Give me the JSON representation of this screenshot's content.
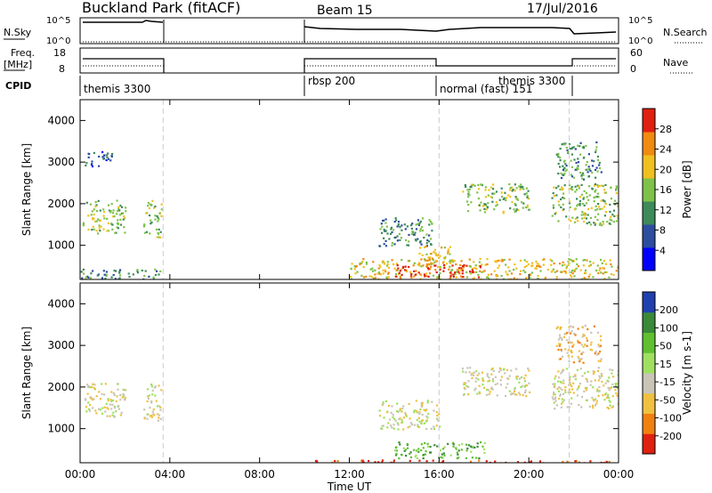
{
  "header": {
    "site": "Buckland Park (fitACF)",
    "beam": "Beam 15",
    "date": "17/Jul/2016"
  },
  "panels": {
    "nsky_label": "N.Sky",
    "nsky_ticks": [
      "10^5",
      "10^0"
    ],
    "nsearch_label": "N.Search",
    "freq_label": "Freq.",
    "freq_unit": "[MHz]",
    "freq_ticks": [
      "18",
      "8"
    ],
    "nave_label": "Nave",
    "nave_ticks": [
      "60",
      "0"
    ],
    "cpid_label": "CPID",
    "cpid_segments": [
      "themis 3300",
      "rbsp 200",
      "normal (fast) 151",
      "themis 3300"
    ]
  },
  "chart_data": [
    {
      "type": "heatmap",
      "title": "",
      "xlabel": "",
      "ylabel": "Slant Range [km]",
      "x_ticks": [
        "00:00",
        "04:00",
        "08:00",
        "12:00",
        "16:00",
        "20:00",
        "00:00"
      ],
      "xlim": [
        0,
        24
      ],
      "y_ticks": [
        "1000",
        "2000",
        "3000",
        "4000"
      ],
      "ylim": [
        180,
        4500
      ],
      "colorbar_label": "Power [dB]",
      "colorbar_ticks": [
        "4",
        "8",
        "12",
        "16",
        "20",
        "24",
        "28"
      ],
      "colorbar_range": [
        0,
        30
      ],
      "colors": [
        "#0000ff",
        "#2d4d9e",
        "#3e8a5a",
        "#7fc24a",
        "#f0c020",
        "#f08a10",
        "#e02010"
      ],
      "regions": [
        {
          "t0": 0.1,
          "t1": 2.0,
          "r0": 1300,
          "r1": 2100,
          "level": 3
        },
        {
          "t0": 0.2,
          "t1": 1.4,
          "r0": 2900,
          "r1": 3300,
          "level": 1
        },
        {
          "t0": 0.0,
          "t1": 3.6,
          "r0": 200,
          "r1": 450,
          "level": 2
        },
        {
          "t0": 2.8,
          "t1": 3.6,
          "r0": 1200,
          "r1": 2100,
          "level": 3
        },
        {
          "t0": 13.3,
          "t1": 15.8,
          "r0": 1000,
          "r1": 1700,
          "level": 2
        },
        {
          "t0": 15.0,
          "t1": 16.5,
          "r0": 500,
          "r1": 1000,
          "level": 4
        },
        {
          "t0": 12.0,
          "t1": 24.0,
          "r0": 200,
          "r1": 700,
          "level": 4
        },
        {
          "t0": 14.0,
          "t1": 18.0,
          "r0": 250,
          "r1": 550,
          "level": 6
        },
        {
          "t0": 17.0,
          "t1": 20.0,
          "r0": 1800,
          "r1": 2500,
          "level": 3
        },
        {
          "t0": 21.0,
          "t1": 24.0,
          "r0": 1500,
          "r1": 2500,
          "level": 3
        },
        {
          "t0": 21.2,
          "t1": 23.2,
          "r0": 2600,
          "r1": 3500,
          "level": 2
        }
      ]
    },
    {
      "type": "heatmap",
      "title": "",
      "xlabel": "Time UT",
      "ylabel": "Slant Range [km]",
      "x_ticks": [
        "00:00",
        "04:00",
        "08:00",
        "12:00",
        "16:00",
        "20:00",
        "00:00"
      ],
      "xlim": [
        0,
        24
      ],
      "y_ticks": [
        "1000",
        "2000",
        "3000",
        "4000"
      ],
      "ylim": [
        180,
        4500
      ],
      "colorbar_label": "Velocity [m s-1]",
      "colorbar_ticks": [
        "200",
        "100",
        "50",
        "15",
        "-15",
        "-50",
        "-100",
        "-200"
      ],
      "colorbar_range": [
        -300,
        300
      ],
      "colors": [
        "#2040b0",
        "#3a8a3a",
        "#60c030",
        "#a0e060",
        "#c8c4b8",
        "#f0c040",
        "#f08010",
        "#e02010"
      ],
      "regions": [
        {
          "t0": 0.1,
          "t1": 2.0,
          "r0": 1300,
          "r1": 2100,
          "level": 4
        },
        {
          "t0": 2.8,
          "t1": 3.6,
          "r0": 1200,
          "r1": 2100,
          "level": 4
        },
        {
          "t0": 13.3,
          "t1": 16.0,
          "r0": 1000,
          "r1": 1700,
          "level": 4
        },
        {
          "t0": 14.0,
          "t1": 18.0,
          "r0": 300,
          "r1": 700,
          "level": 2
        },
        {
          "t0": 10.0,
          "t1": 24.0,
          "r0": 180,
          "r1": 260,
          "level": 7
        },
        {
          "t0": 17.0,
          "t1": 20.0,
          "r0": 1800,
          "r1": 2500,
          "level": 4
        },
        {
          "t0": 21.0,
          "t1": 24.0,
          "r0": 1500,
          "r1": 2500,
          "level": 4
        },
        {
          "t0": 21.2,
          "t1": 23.2,
          "r0": 2600,
          "r1": 3500,
          "level": 5
        }
      ]
    }
  ]
}
